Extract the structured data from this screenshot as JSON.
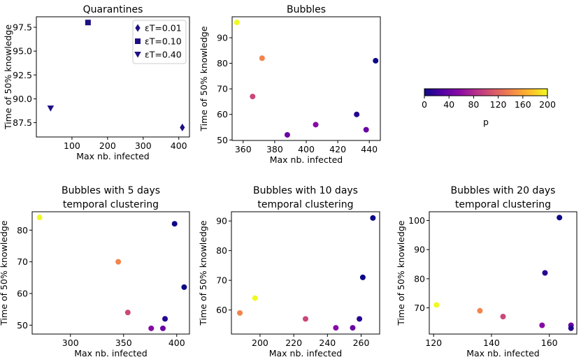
{
  "colormap": {
    "label": "p",
    "min": 0,
    "max": 200,
    "ticks": [
      0,
      40,
      80,
      120,
      160,
      200
    ],
    "stops": [
      "#0d0887",
      "#5302a3",
      "#8b0aa5",
      "#b83289",
      "#db5c68",
      "#f48849",
      "#febc2a",
      "#f0f921"
    ]
  },
  "legend": {
    "items": [
      {
        "marker": "diamond",
        "label_text": "εT=0.01"
      },
      {
        "marker": "square",
        "label_text": "εT=0.10"
      },
      {
        "marker": "triangle",
        "label_text": "εT=0.40"
      }
    ]
  },
  "chart_data": [
    {
      "id": "quarantines",
      "type": "scatter",
      "title": [
        "Quarantines"
      ],
      "xlabel": "Max nb. infected",
      "ylabel": "Time of 50% knowledge",
      "xlim": [
        0,
        430
      ],
      "ylim": [
        86.0,
        98.6
      ],
      "xticks": [
        100,
        200,
        300,
        400
      ],
      "yticks": [
        87.5,
        90.0,
        92.5,
        95.0,
        97.5
      ],
      "tick_decimals": 1,
      "points": [
        {
          "x": 410,
          "y": 87,
          "marker": "diamond",
          "series": "εT=0.01"
        },
        {
          "x": 145,
          "y": 98,
          "marker": "square",
          "series": "εT=0.10"
        },
        {
          "x": 40,
          "y": 89,
          "marker": "triangle",
          "series": "εT=0.40"
        }
      ]
    },
    {
      "id": "bubbles",
      "type": "scatter",
      "title": [
        "Bubbles"
      ],
      "xlabel": "Max nb. infected",
      "ylabel": "Time of 50% knowledge",
      "xlim": [
        353,
        447
      ],
      "ylim": [
        49.8,
        98.2
      ],
      "xticks": [
        360,
        380,
        400,
        420,
        440
      ],
      "yticks": [
        50,
        60,
        70,
        80,
        90
      ],
      "tick_decimals": 0,
      "points": [
        {
          "x": 356,
          "y": 96,
          "p": 200
        },
        {
          "x": 372,
          "y": 82,
          "p": 140
        },
        {
          "x": 366,
          "y": 67,
          "p": 100
        },
        {
          "x": 388,
          "y": 52,
          "p": 40
        },
        {
          "x": 406,
          "y": 56,
          "p": 55
        },
        {
          "x": 432,
          "y": 60,
          "p": 10
        },
        {
          "x": 438,
          "y": 54,
          "p": 40
        },
        {
          "x": 444,
          "y": 81,
          "p": 0
        }
      ]
    },
    {
      "id": "bubbles-5d",
      "type": "scatter",
      "title": [
        "Bubbles with 5 days",
        "temporal clustering"
      ],
      "xlabel": "Max nb. infected",
      "ylabel": "Time of 50% knowledge",
      "xlim": [
        264,
        412
      ],
      "ylim": [
        47.2,
        85.8
      ],
      "xticks": [
        300,
        350,
        400
      ],
      "yticks": [
        50,
        60,
        70,
        80
      ],
      "tick_decimals": 0,
      "points": [
        {
          "x": 271,
          "y": 84,
          "p": 200
        },
        {
          "x": 345,
          "y": 70,
          "p": 140
        },
        {
          "x": 354,
          "y": 54,
          "p": 100
        },
        {
          "x": 376,
          "y": 49,
          "p": 55
        },
        {
          "x": 387,
          "y": 49,
          "p": 40
        },
        {
          "x": 389,
          "y": 52,
          "p": 10
        },
        {
          "x": 398,
          "y": 82,
          "p": 0
        },
        {
          "x": 407,
          "y": 62,
          "p": 0
        }
      ]
    },
    {
      "id": "bubbles-10d",
      "type": "scatter",
      "title": [
        "Bubbles with 10 days",
        "temporal clustering"
      ],
      "xlabel": "Max nb. infected",
      "ylabel": "Time of 50% knowledge",
      "xlim": [
        183,
        271
      ],
      "ylim": [
        51.9,
        93.1
      ],
      "xticks": [
        200,
        220,
        240,
        260
      ],
      "yticks": [
        60,
        70,
        80,
        90
      ],
      "tick_decimals": 0,
      "points": [
        {
          "x": 188,
          "y": 59,
          "p": 140
        },
        {
          "x": 197,
          "y": 64,
          "p": 200
        },
        {
          "x": 227,
          "y": 57,
          "p": 100
        },
        {
          "x": 245,
          "y": 54,
          "p": 55
        },
        {
          "x": 255,
          "y": 54,
          "p": 40
        },
        {
          "x": 259,
          "y": 57,
          "p": 10
        },
        {
          "x": 261,
          "y": 71,
          "p": 0
        },
        {
          "x": 267,
          "y": 91,
          "p": 0
        }
      ]
    },
    {
      "id": "bubbles-20d",
      "type": "scatter",
      "title": [
        "Bubbles with 20 days",
        "temporal clustering"
      ],
      "xlabel": "Max nb. infected",
      "ylabel": "Time of 50% knowledge",
      "xlim": [
        118.5,
        169.5
      ],
      "ylim": [
        61.0,
        103.0
      ],
      "xticks": [
        120,
        140,
        160
      ],
      "yticks": [
        70,
        80,
        90,
        100
      ],
      "tick_decimals": 0,
      "points": [
        {
          "x": 121,
          "y": 71,
          "p": 200
        },
        {
          "x": 136,
          "y": 69,
          "p": 140
        },
        {
          "x": 144,
          "y": 67,
          "p": 100
        },
        {
          "x": 157.5,
          "y": 64,
          "p": 55
        },
        {
          "x": 158.5,
          "y": 82,
          "p": 10
        },
        {
          "x": 163.5,
          "y": 101,
          "p": 0
        },
        {
          "x": 167.5,
          "y": 64,
          "p": 40
        },
        {
          "x": 167.5,
          "y": 63,
          "p": 10
        }
      ]
    }
  ]
}
